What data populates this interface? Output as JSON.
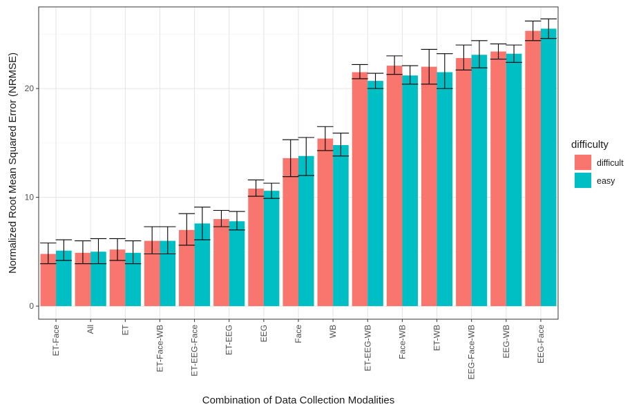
{
  "chart_data": {
    "type": "bar",
    "title": "",
    "xlabel": "Combination of Data Collection Modalities",
    "ylabel": "Normalized Root Mean Squared Error (NRMSE)",
    "ylim": [
      -1.2,
      27.5
    ],
    "yticks": [
      "0",
      "10",
      "20"
    ],
    "ytick_values": [
      0,
      10,
      20
    ],
    "grid": true,
    "legend_position": "right",
    "legend_title": "difficulty",
    "categories": [
      "ET-Face",
      "All",
      "ET",
      "ET-Face-WB",
      "ET-EEG-Face",
      "ET-EEG",
      "EEG",
      "Face",
      "WB",
      "ET-EEG-WB",
      "Face-WB",
      "ET-WB",
      "EEG-Face-WB",
      "EEG-WB",
      "EEG-Face"
    ],
    "series": [
      {
        "name": "difficult",
        "color": "#F8766D",
        "values": [
          4.8,
          4.9,
          5.2,
          6.0,
          7.0,
          8.0,
          10.8,
          13.6,
          15.4,
          21.5,
          22.1,
          22.0,
          22.8,
          23.4,
          25.3
        ],
        "err_low": [
          3.9,
          3.9,
          4.2,
          4.8,
          5.6,
          7.3,
          10.1,
          11.9,
          14.3,
          20.9,
          21.3,
          20.4,
          21.7,
          22.7,
          24.4
        ],
        "err_high": [
          5.8,
          6.0,
          6.2,
          7.3,
          8.5,
          8.8,
          11.6,
          15.3,
          16.5,
          22.2,
          23.0,
          23.6,
          24.0,
          24.1,
          26.2
        ]
      },
      {
        "name": "easy",
        "color": "#00BFC4",
        "values": [
          5.1,
          5.0,
          4.9,
          6.0,
          7.6,
          7.8,
          10.6,
          13.8,
          14.8,
          20.7,
          21.2,
          21.5,
          23.1,
          23.2,
          25.5
        ],
        "err_low": [
          4.2,
          3.9,
          3.9,
          4.8,
          6.1,
          7.0,
          9.9,
          12.0,
          13.8,
          20.0,
          20.4,
          20.0,
          21.9,
          22.4,
          24.6
        ],
        "err_high": [
          6.1,
          6.2,
          6.0,
          7.3,
          9.1,
          8.7,
          11.3,
          15.5,
          15.9,
          21.4,
          22.1,
          23.2,
          24.4,
          24.0,
          26.4
        ]
      }
    ]
  }
}
